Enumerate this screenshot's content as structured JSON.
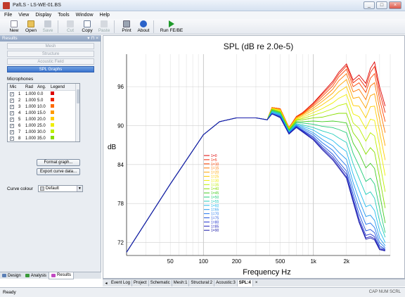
{
  "window": {
    "title": "PafLS - LS-WE-01.BS",
    "controls": [
      "_",
      "□",
      "×"
    ]
  },
  "menu": [
    "File",
    "View",
    "Display",
    "Tools",
    "Window",
    "Help"
  ],
  "toolbar": {
    "new": "New",
    "open": "Open",
    "save": "Save",
    "cut": "Cut",
    "copy": "Copy",
    "paste": "Paste",
    "print": "Print",
    "about": "About",
    "run": "Run FE/BE"
  },
  "panel": {
    "title": "Results",
    "header_tools": "▾ ⊓ ×",
    "buttons": [
      "Mesh",
      "Structure",
      "Acoustic Field",
      "SPL Graphs"
    ],
    "microphones_label": "Microphones",
    "columns": [
      "Mic",
      "Rad",
      "Ang.",
      "Legend"
    ],
    "mics": [
      {
        "n": "1",
        "rad": "1.000",
        "ang": "0.0",
        "color": "#dd0000"
      },
      {
        "n": "2",
        "rad": "1.000",
        "ang": "5.0",
        "color": "#ee2200"
      },
      {
        "n": "3",
        "rad": "1.000",
        "ang": "10.0",
        "color": "#ff6a00"
      },
      {
        "n": "4",
        "rad": "1.000",
        "ang": "15.0",
        "color": "#ff9900"
      },
      {
        "n": "5",
        "rad": "1.000",
        "ang": "20.0",
        "color": "#ffcc00"
      },
      {
        "n": "6",
        "rad": "1.000",
        "ang": "25.0",
        "color": "#eeee00"
      },
      {
        "n": "7",
        "rad": "1.000",
        "ang": "30.0",
        "color": "#bbee00"
      },
      {
        "n": "8",
        "rad": "1.000",
        "ang": "35.0",
        "color": "#88dd00"
      }
    ],
    "curve_colour_label": "Curve colour",
    "curve_colour_value": "Default",
    "format_button": "Format graph...",
    "export_button": "Export curve data...",
    "tabs": [
      "Design",
      "Analysis",
      "Results"
    ]
  },
  "doc_tabs": [
    "Event Log",
    "Project",
    "Schematic",
    "Mesh:1",
    "Structural:2",
    "Acoustic:3",
    "SPL:4"
  ],
  "status": {
    "left": "Ready",
    "right": "CAP  NUM  SCRL"
  },
  "chart_data": {
    "type": "line",
    "title": "SPL (dB re 2.0e-5)",
    "xlabel": "Frequency Hz",
    "ylabel": "dB",
    "xscale": "log",
    "xlim": [
      20,
      5000
    ],
    "ylim": [
      70,
      101
    ],
    "xticks": [
      50,
      100,
      200,
      500,
      1000,
      2000
    ],
    "xtick_labels": [
      "50",
      "100",
      "200",
      "500",
      "1k",
      "2k"
    ],
    "yticks": [
      72,
      78,
      84,
      90,
      96
    ],
    "grid": true,
    "legend_position": "center-left",
    "freqs": [
      20,
      50,
      100,
      140,
      200,
      300,
      380,
      420,
      500,
      600,
      700,
      800,
      1000,
      1200,
      1500,
      1700,
      2000,
      2300,
      2600,
      3000,
      3300,
      3600,
      4000,
      4500
    ],
    "series": [
      {
        "name": "1=0",
        "color": "#dd0000",
        "values": [
          70.5,
          81.0,
          88.6,
          90.6,
          91.2,
          91.2,
          90.9,
          92.8,
          92.6,
          89.7,
          91.4,
          92.0,
          93.5,
          95.0,
          96.8,
          98.2,
          99.5,
          97.0,
          97.8,
          96.5,
          98.8,
          99.8,
          96.0,
          93.0
        ]
      },
      {
        "name": "1=5",
        "color": "#ee2200",
        "values": [
          70.5,
          81.0,
          88.6,
          90.6,
          91.2,
          91.2,
          90.9,
          92.8,
          92.6,
          89.7,
          91.4,
          92.0,
          93.4,
          94.8,
          96.5,
          97.9,
          99.2,
          96.6,
          97.3,
          95.9,
          98.2,
          99.1,
          95.2,
          92.0
        ]
      },
      {
        "name": "1=10",
        "color": "#ff4400",
        "values": [
          70.5,
          81.0,
          88.6,
          90.6,
          91.2,
          91.2,
          90.9,
          92.8,
          92.6,
          89.7,
          91.3,
          91.9,
          93.2,
          94.5,
          96.1,
          97.5,
          98.7,
          96.0,
          96.6,
          95.1,
          97.3,
          98.0,
          94.1,
          90.6
        ]
      },
      {
        "name": "1=15",
        "color": "#ff7700",
        "values": [
          70.5,
          81.0,
          88.6,
          90.6,
          91.2,
          91.2,
          90.9,
          92.8,
          92.5,
          89.7,
          91.3,
          91.8,
          93.0,
          94.1,
          95.6,
          96.9,
          98.0,
          95.2,
          95.6,
          94.0,
          96.1,
          96.6,
          92.7,
          88.9
        ]
      },
      {
        "name": "1=20",
        "color": "#ffa500",
        "values": [
          70.5,
          81.0,
          88.6,
          90.6,
          91.2,
          91.2,
          90.9,
          92.7,
          92.5,
          89.6,
          91.2,
          91.7,
          92.7,
          93.7,
          95.0,
          96.1,
          97.1,
          94.2,
          94.4,
          92.7,
          94.6,
          94.9,
          91.0,
          86.9
        ]
      },
      {
        "name": "1=25",
        "color": "#ffcc00",
        "values": [
          70.5,
          81.0,
          88.6,
          90.6,
          91.2,
          91.2,
          90.9,
          92.7,
          92.4,
          89.6,
          91.1,
          91.5,
          92.4,
          93.2,
          94.3,
          95.2,
          96.0,
          93.1,
          93.0,
          91.2,
          92.9,
          93.0,
          89.1,
          84.7
        ]
      },
      {
        "name": "1=30",
        "color": "#eeee00",
        "values": [
          70.5,
          81.0,
          88.6,
          90.6,
          91.2,
          91.2,
          90.9,
          92.6,
          92.3,
          89.5,
          91.0,
          91.3,
          92.0,
          92.6,
          93.5,
          94.2,
          94.8,
          91.8,
          91.4,
          89.5,
          91.0,
          90.8,
          86.9,
          82.3
        ]
      },
      {
        "name": "1=35",
        "color": "#bbee00",
        "values": [
          70.5,
          81.0,
          88.6,
          90.6,
          91.2,
          91.2,
          90.9,
          92.6,
          92.2,
          89.5,
          90.9,
          91.1,
          91.6,
          92.0,
          92.6,
          93.1,
          93.4,
          90.4,
          89.6,
          87.6,
          88.9,
          88.4,
          84.5,
          79.8
        ]
      },
      {
        "name": "1=40",
        "color": "#88dd00",
        "values": [
          70.5,
          81.0,
          88.6,
          90.6,
          91.2,
          91.2,
          90.9,
          92.5,
          92.1,
          89.4,
          90.8,
          90.9,
          91.2,
          91.3,
          91.7,
          91.9,
          91.9,
          88.9,
          87.7,
          85.6,
          86.6,
          85.9,
          82.0,
          77.3
        ]
      },
      {
        "name": "1=45",
        "color": "#44cc22",
        "values": [
          70.5,
          81.0,
          88.6,
          90.6,
          91.2,
          91.2,
          90.9,
          92.4,
          92.0,
          89.3,
          90.6,
          90.6,
          90.7,
          90.6,
          90.7,
          90.6,
          90.4,
          87.3,
          85.8,
          83.5,
          84.2,
          83.4,
          79.6,
          75.0
        ]
      },
      {
        "name": "1=50",
        "color": "#22cc77",
        "values": [
          70.5,
          81.0,
          88.6,
          90.6,
          91.2,
          91.2,
          90.9,
          92.3,
          91.9,
          89.2,
          90.5,
          90.4,
          90.2,
          89.9,
          89.7,
          89.4,
          88.9,
          85.7,
          83.8,
          81.4,
          81.9,
          81.0,
          77.3,
          73.5
        ]
      },
      {
        "name": "1=55",
        "color": "#22ccbb",
        "values": [
          70.5,
          81.0,
          88.6,
          90.6,
          91.2,
          91.2,
          90.9,
          92.2,
          91.8,
          89.1,
          90.3,
          90.1,
          89.7,
          89.2,
          88.7,
          88.1,
          87.4,
          84.1,
          81.9,
          79.4,
          79.8,
          78.8,
          75.3,
          72.8
        ]
      },
      {
        "name": "1=60",
        "color": "#22bbee",
        "values": [
          70.5,
          81.0,
          88.6,
          90.6,
          91.2,
          91.2,
          90.9,
          92.1,
          91.7,
          89.0,
          90.2,
          89.9,
          89.3,
          88.5,
          87.7,
          86.9,
          86.0,
          82.5,
          80.1,
          77.5,
          77.8,
          76.9,
          73.8,
          72.0
        ]
      },
      {
        "name": "1=65",
        "color": "#2299ee",
        "values": [
          70.5,
          81.0,
          88.6,
          90.6,
          91.2,
          91.2,
          90.9,
          92.0,
          91.6,
          88.9,
          90.1,
          89.7,
          88.9,
          87.9,
          86.9,
          85.9,
          84.8,
          81.2,
          78.6,
          76.0,
          76.2,
          75.4,
          72.7,
          71.5
        ]
      },
      {
        "name": "1=70",
        "color": "#2277ee",
        "values": [
          70.5,
          81.0,
          88.6,
          90.6,
          91.2,
          91.2,
          90.9,
          91.9,
          91.5,
          88.9,
          90.0,
          89.5,
          88.6,
          87.4,
          86.2,
          85.1,
          83.8,
          80.2,
          77.4,
          74.8,
          75.0,
          74.3,
          72.0,
          71.2
        ]
      },
      {
        "name": "1=75",
        "color": "#2255dd",
        "values": [
          70.5,
          81.0,
          88.6,
          90.6,
          91.2,
          91.2,
          90.9,
          91.9,
          91.4,
          88.8,
          89.9,
          89.3,
          88.3,
          87.0,
          85.6,
          84.4,
          83.0,
          79.4,
          76.4,
          73.8,
          74.0,
          73.5,
          71.5,
          71.0
        ]
      },
      {
        "name": "1=80",
        "color": "#2233cc",
        "values": [
          70.5,
          81.0,
          88.6,
          90.6,
          91.2,
          91.2,
          90.9,
          91.8,
          91.3,
          88.8,
          89.8,
          89.2,
          88.1,
          86.7,
          85.2,
          84.0,
          82.5,
          78.8,
          75.7,
          73.1,
          73.3,
          72.9,
          71.2,
          70.9
        ]
      },
      {
        "name": "1=85",
        "color": "#2222bb",
        "values": [
          70.5,
          81.0,
          88.6,
          90.6,
          91.2,
          91.2,
          90.9,
          91.8,
          91.3,
          88.7,
          89.8,
          89.1,
          87.9,
          86.5,
          84.9,
          83.7,
          82.1,
          78.4,
          75.3,
          72.7,
          72.9,
          72.6,
          71.0,
          70.8
        ]
      },
      {
        "name": "1=90",
        "color": "#1a1aa8",
        "values": [
          70.5,
          81.0,
          88.6,
          90.6,
          91.2,
          91.2,
          90.9,
          91.8,
          91.2,
          88.7,
          89.7,
          89.0,
          87.8,
          86.3,
          84.7,
          83.5,
          81.9,
          78.2,
          75.1,
          72.5,
          72.7,
          72.4,
          70.9,
          70.7
        ]
      }
    ]
  }
}
